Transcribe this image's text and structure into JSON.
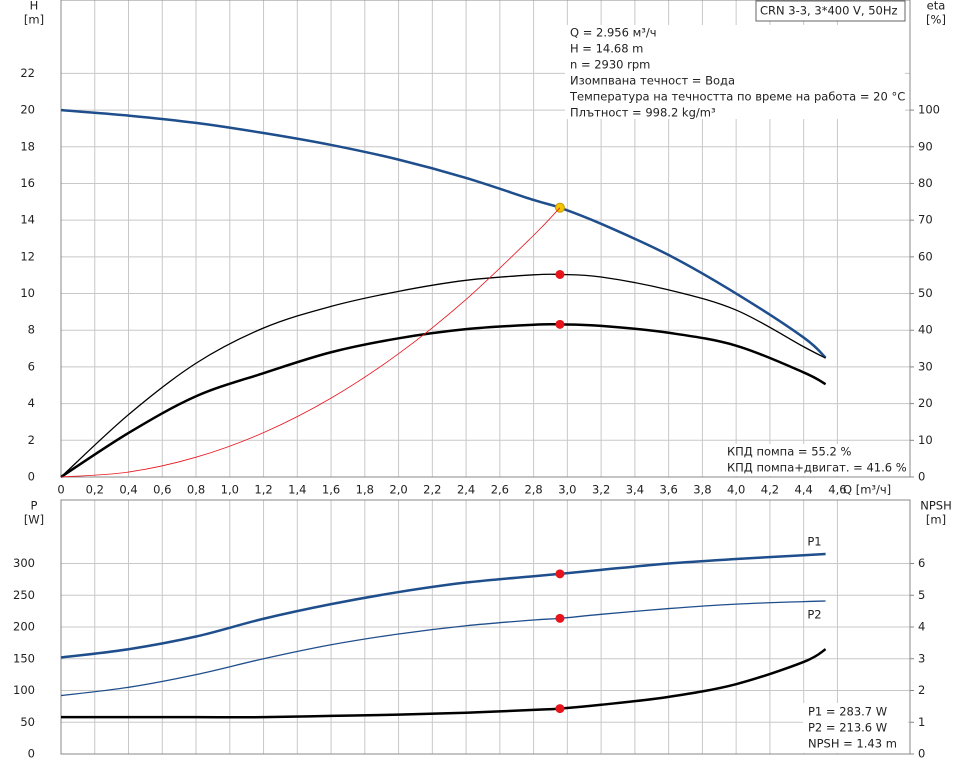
{
  "chart_data": [
    {
      "type": "line",
      "title": "CRN 3-3, 3*400 V, 50Hz",
      "y_label": "H",
      "y_unit": "[m]",
      "y2_label": "eta",
      "y2_unit": "[%]",
      "x_label": "Q [m³/ч]",
      "xlim": [
        0,
        5.03
      ],
      "ylim": [
        0,
        26
      ],
      "y2lim": [
        0,
        130
      ],
      "grid": true,
      "duty_x": 2.956,
      "xticks": [
        0,
        {
          "value": 0.2,
          "label": "0,2"
        },
        {
          "value": 0.4,
          "label": "0,4"
        },
        {
          "value": 0.6,
          "label": "0,6"
        },
        {
          "value": 0.8,
          "label": "0,8"
        },
        {
          "value": 1.0,
          "label": "1,0"
        },
        {
          "value": 1.2,
          "label": "1,2"
        },
        {
          "value": 1.4,
          "label": "1,4"
        },
        {
          "value": 1.6,
          "label": "1,6"
        },
        {
          "value": 1.8,
          "label": "1,8"
        },
        {
          "value": 2.0,
          "label": "2,0"
        },
        {
          "value": 2.2,
          "label": "2,2"
        },
        {
          "value": 2.4,
          "label": "2,4"
        },
        {
          "value": 2.6,
          "label": "2,6"
        },
        {
          "value": 2.8,
          "label": "2,8"
        },
        {
          "value": 3.0,
          "label": "3,0"
        },
        {
          "value": 3.2,
          "label": "3,2"
        },
        {
          "value": 3.4,
          "label": "3,4"
        },
        {
          "value": 3.6,
          "label": "3,6"
        },
        {
          "value": 3.8,
          "label": "3,8"
        },
        {
          "value": 4.0,
          "label": "4,0"
        },
        {
          "value": 4.2,
          "label": "4,2"
        },
        {
          "value": 4.4,
          "label": "4,4"
        },
        {
          "value": 4.6,
          "label": "4,6"
        }
      ],
      "yticks": [
        0,
        2,
        4,
        6,
        8,
        10,
        12,
        14,
        16,
        18,
        20,
        22
      ],
      "y2ticks": [
        0,
        10,
        20,
        30,
        40,
        50,
        60,
        70,
        80,
        90,
        100
      ],
      "x": [
        0,
        0.4,
        0.8,
        1.2,
        1.6,
        2.0,
        2.4,
        2.8,
        2.956,
        3.2,
        3.6,
        4.0,
        4.4,
        4.53
      ],
      "series": [
        {
          "color": "#1f4e8c",
          "width": 2.5,
          "marker_color": "#f5c400",
          "values": [
            20.0,
            19.7,
            19.3,
            18.75,
            18.1,
            17.3,
            16.3,
            15.1,
            14.68,
            13.8,
            12.1,
            10.0,
            7.6,
            6.5
          ]
        },
        {
          "color": "#000000",
          "width": 1.3,
          "axis": "y2",
          "marker_color": "#e8141c",
          "values": [
            0,
            17,
            31,
            40.6,
            46.5,
            50.6,
            53.6,
            55.1,
            55.2,
            54.5,
            51,
            45.5,
            35.5,
            32.4
          ]
        },
        {
          "color": "#000000",
          "width": 2.5,
          "axis": "y2",
          "marker_color": "#e8141c",
          "values": [
            0,
            12,
            22,
            28.3,
            34,
            37.8,
            40.3,
            41.5,
            41.6,
            41.2,
            39.3,
            35.8,
            28.5,
            25.3
          ]
        },
        {
          "color": "#e8141c",
          "width": 0.8,
          "values": [
            0,
            0.27,
            1.08,
            2.42,
            4.3,
            6.72,
            9.68,
            13.17,
            14.68,
            null,
            null,
            null,
            null,
            null
          ]
        }
      ],
      "info": [
        "Q = 2.956 м³/ч",
        "H = 14.68 m",
        "n = 2930 rpm",
        "Изомпвана течност = Вода",
        "Температура на течността по време на работа = 20 °C",
        "Плътност = 998.2 kg/m³"
      ],
      "annotations": [
        "КПД помпа = 55.2 %",
        "КПД помпа+двигат. = 41.6 %"
      ]
    },
    {
      "type": "line",
      "y_label": "P",
      "y_unit": "[W]",
      "y2_label": "NPSH",
      "y2_unit": "[m]",
      "ylim": [
        0,
        400
      ],
      "y2lim": [
        0,
        8
      ],
      "grid": true,
      "yticks": [
        0,
        50,
        100,
        150,
        200,
        250,
        300
      ],
      "y2ticks": [
        0,
        1,
        2,
        3,
        4,
        5,
        6
      ],
      "series": [
        {
          "name": "P1",
          "color": "#1f4e8c",
          "width": 2.5,
          "marker_color": "#e8141c",
          "values": [
            152,
            165,
            185,
            213,
            236,
            255,
            270,
            280,
            283.7,
            290,
            300,
            307,
            313,
            315
          ]
        },
        {
          "name": "P2",
          "color": "#1f4e8c",
          "width": 1.3,
          "marker_color": "#e8141c",
          "values": [
            92,
            105,
            125,
            150,
            172,
            189,
            202,
            211,
            213.6,
            220,
            229,
            236,
            240,
            241
          ]
        },
        {
          "color": "#000000",
          "width": 2.5,
          "axis": "y2",
          "marker_color": "#e8141c",
          "values": [
            1.16,
            1.16,
            1.16,
            1.16,
            1.2,
            1.24,
            1.3,
            1.39,
            1.43,
            1.55,
            1.8,
            2.2,
            2.9,
            3.3
          ]
        }
      ],
      "annotations": [
        "P1 = 283.7 W",
        "P2 = 213.6 W",
        "NPSH = 1.43 m"
      ]
    }
  ]
}
